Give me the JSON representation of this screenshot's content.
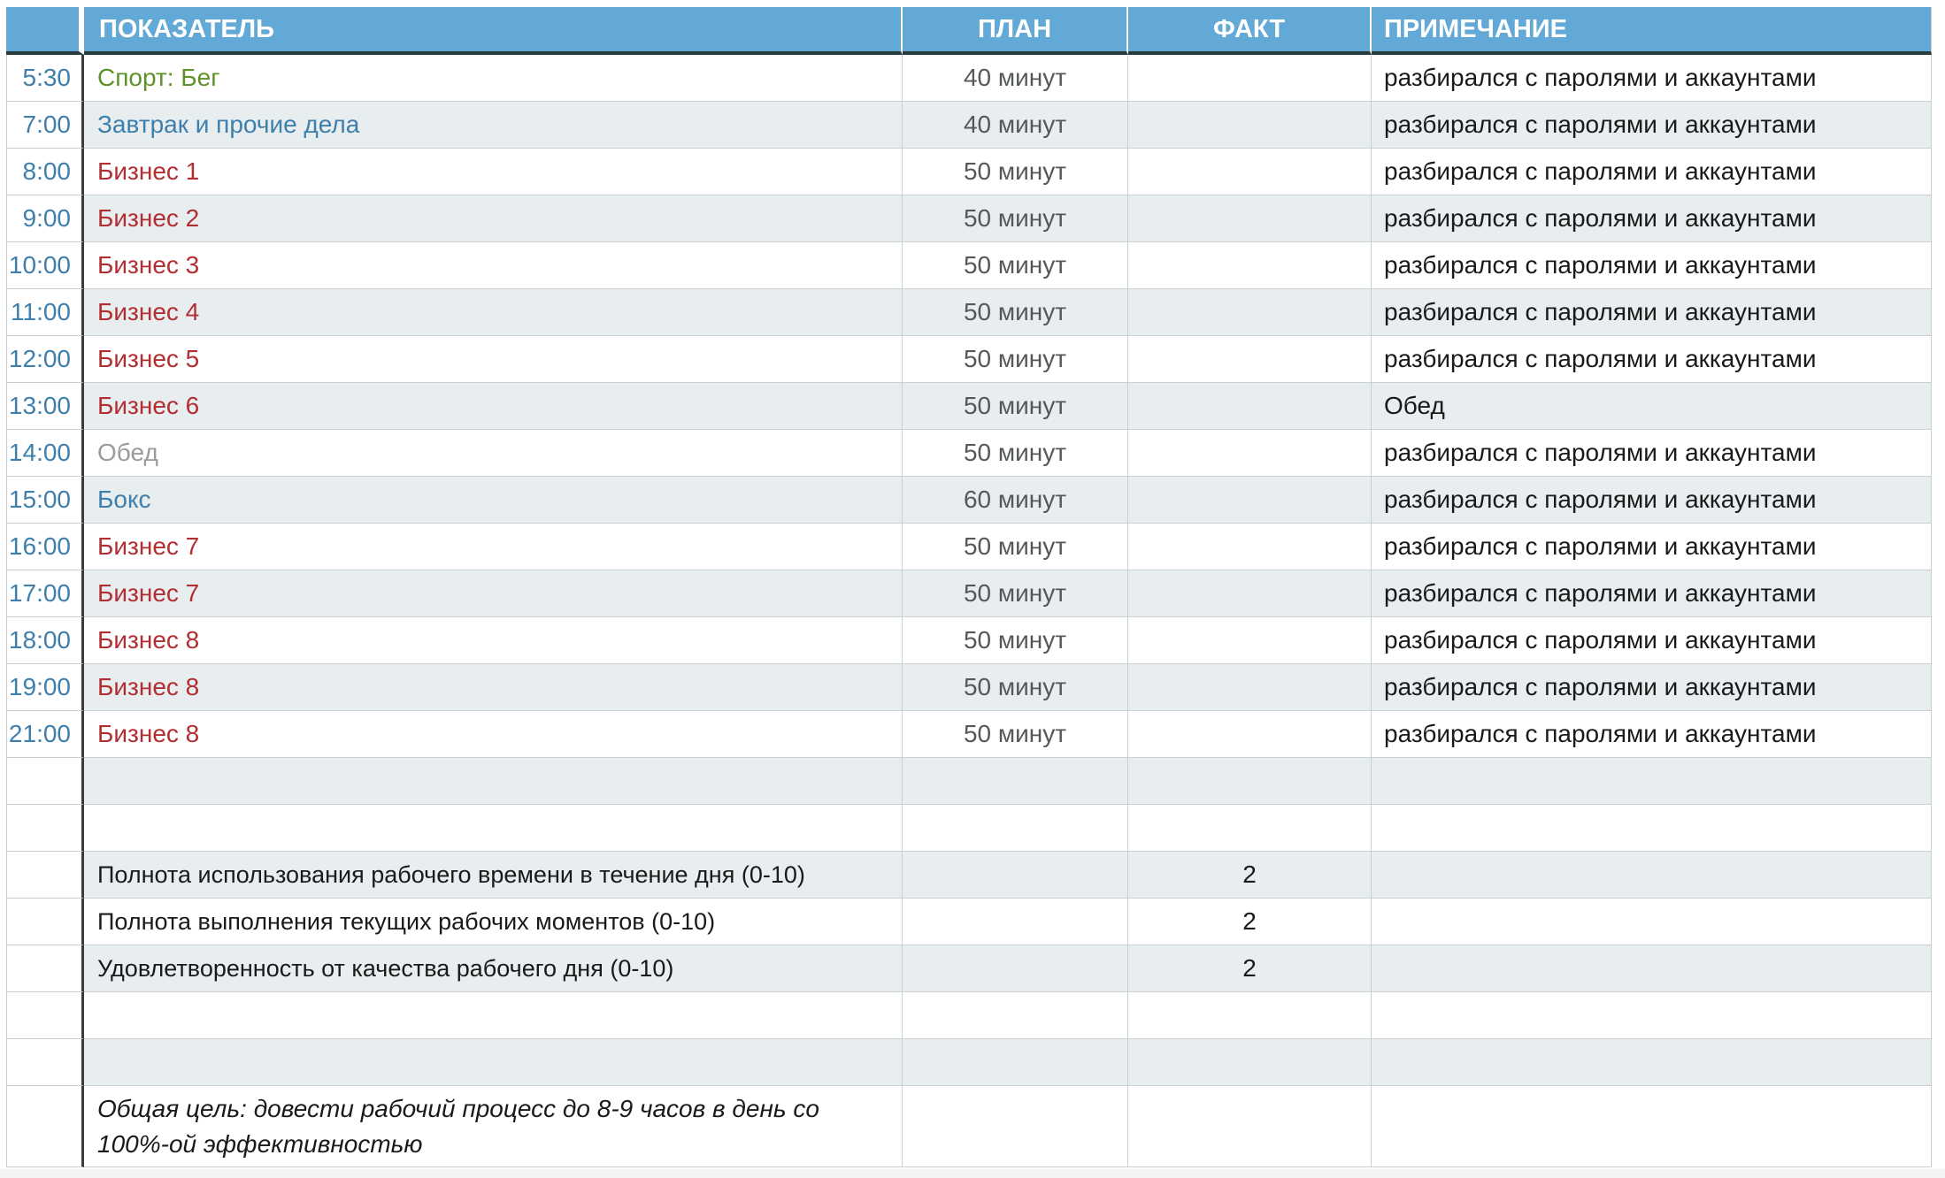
{
  "colors": {
    "header_bg": "#63A9D8",
    "header_text": "#FFFFFF",
    "header_underline": "#273B3E",
    "divider_dark": "#3B3B3B",
    "grid": "#C9D0D4",
    "row_shade": "#E8EDEF",
    "plan_text": "#54585B",
    "text": "#1A1A1A",
    "strip": "#F4F4F6",
    "green": "#5E9229",
    "blue": "#3E7FAC",
    "red": "#B22E31",
    "gray": "#9B9B9B"
  },
  "header": {
    "columns": [
      "ПОКАЗАТЕЛЬ",
      "ПЛАН",
      "ФАКТ",
      "ПРИМЕЧАНИЕ"
    ]
  },
  "rows": [
    {
      "kind": "schedule",
      "shade": false,
      "time": "5:30",
      "activity": "Спорт: Бег",
      "color": "green",
      "plan": "40 минут",
      "fact": "",
      "note": "разбирался с паролями и аккаунтами"
    },
    {
      "kind": "schedule",
      "shade": true,
      "time": "7:00",
      "activity": "Завтрак и прочие дела",
      "color": "blue",
      "plan": "40 минут",
      "fact": "",
      "note": "разбирался с паролями и аккаунтами"
    },
    {
      "kind": "schedule",
      "shade": false,
      "time": "8:00",
      "activity": "Бизнес 1",
      "color": "red",
      "plan": "50 минут",
      "fact": "",
      "note": "разбирался с паролями и аккаунтами"
    },
    {
      "kind": "schedule",
      "shade": true,
      "time": "9:00",
      "activity": "Бизнес 2",
      "color": "red",
      "plan": "50 минут",
      "fact": "",
      "note": "разбирался с паролями и аккаунтами"
    },
    {
      "kind": "schedule",
      "shade": false,
      "time": "10:00",
      "activity": "Бизнес 3",
      "color": "red",
      "plan": "50 минут",
      "fact": "",
      "note": "разбирался с паролями и аккаунтами"
    },
    {
      "kind": "schedule",
      "shade": true,
      "time": "11:00",
      "activity": "Бизнес 4",
      "color": "red",
      "plan": "50 минут",
      "fact": "",
      "note": "разбирался с паролями и аккаунтами"
    },
    {
      "kind": "schedule",
      "shade": false,
      "time": "12:00",
      "activity": "Бизнес 5",
      "color": "red",
      "plan": "50 минут",
      "fact": "",
      "note": "разбирался с паролями и аккаунтами"
    },
    {
      "kind": "schedule",
      "shade": true,
      "time": "13:00",
      "activity": "Бизнес 6",
      "color": "red",
      "plan": "50 минут",
      "fact": "",
      "note": "Обед"
    },
    {
      "kind": "schedule",
      "shade": false,
      "time": "14:00",
      "activity": "Обед",
      "color": "gray",
      "plan": "50 минут",
      "fact": "",
      "note": "разбирался с паролями и аккаунтами"
    },
    {
      "kind": "schedule",
      "shade": true,
      "time": "15:00",
      "activity": "Бокс",
      "color": "blue",
      "plan": "60 минут",
      "fact": "",
      "note": "разбирался с паролями и аккаунтами"
    },
    {
      "kind": "schedule",
      "shade": false,
      "time": "16:00",
      "activity": "Бизнес 7",
      "color": "red",
      "plan": "50 минут",
      "fact": "",
      "note": "разбирался с паролями и аккаунтами"
    },
    {
      "kind": "schedule",
      "shade": true,
      "time": "17:00",
      "activity": "Бизнес 7",
      "color": "red",
      "plan": "50 минут",
      "fact": "",
      "note": "разбирался с паролями и аккаунтами"
    },
    {
      "kind": "schedule",
      "shade": false,
      "time": "18:00",
      "activity": "Бизнес 8",
      "color": "red",
      "plan": "50 минут",
      "fact": "",
      "note": "разбирался с паролями и аккаунтами"
    },
    {
      "kind": "schedule",
      "shade": true,
      "time": "19:00",
      "activity": "Бизнес 8",
      "color": "red",
      "plan": "50 минут",
      "fact": "",
      "note": "разбирался с паролями и аккаунтами"
    },
    {
      "kind": "schedule",
      "shade": false,
      "time": "21:00",
      "activity": "Бизнес 8",
      "color": "red",
      "plan": "50 минут",
      "fact": "",
      "note": "разбирался с паролями и аккаунтами"
    },
    {
      "kind": "empty",
      "shade": true
    },
    {
      "kind": "empty",
      "shade": false
    },
    {
      "kind": "metric",
      "shade": true,
      "label": "Полнота использования рабочего времени в течение дня (0-10)",
      "fact": "2"
    },
    {
      "kind": "metric",
      "shade": false,
      "label": "Полнота выполнения текущих рабочих моментов (0-10)",
      "fact": "2"
    },
    {
      "kind": "metric",
      "shade": true,
      "label": "Удовлетворенность от качества рабочего дня (0-10)",
      "fact": "2"
    },
    {
      "kind": "empty",
      "shade": false
    },
    {
      "kind": "empty",
      "shade": true
    },
    {
      "kind": "goal",
      "shade": false,
      "text": "Общая цель: довести рабочий процесс до 8-9 часов в день со 100%-ой эффективностью"
    }
  ]
}
